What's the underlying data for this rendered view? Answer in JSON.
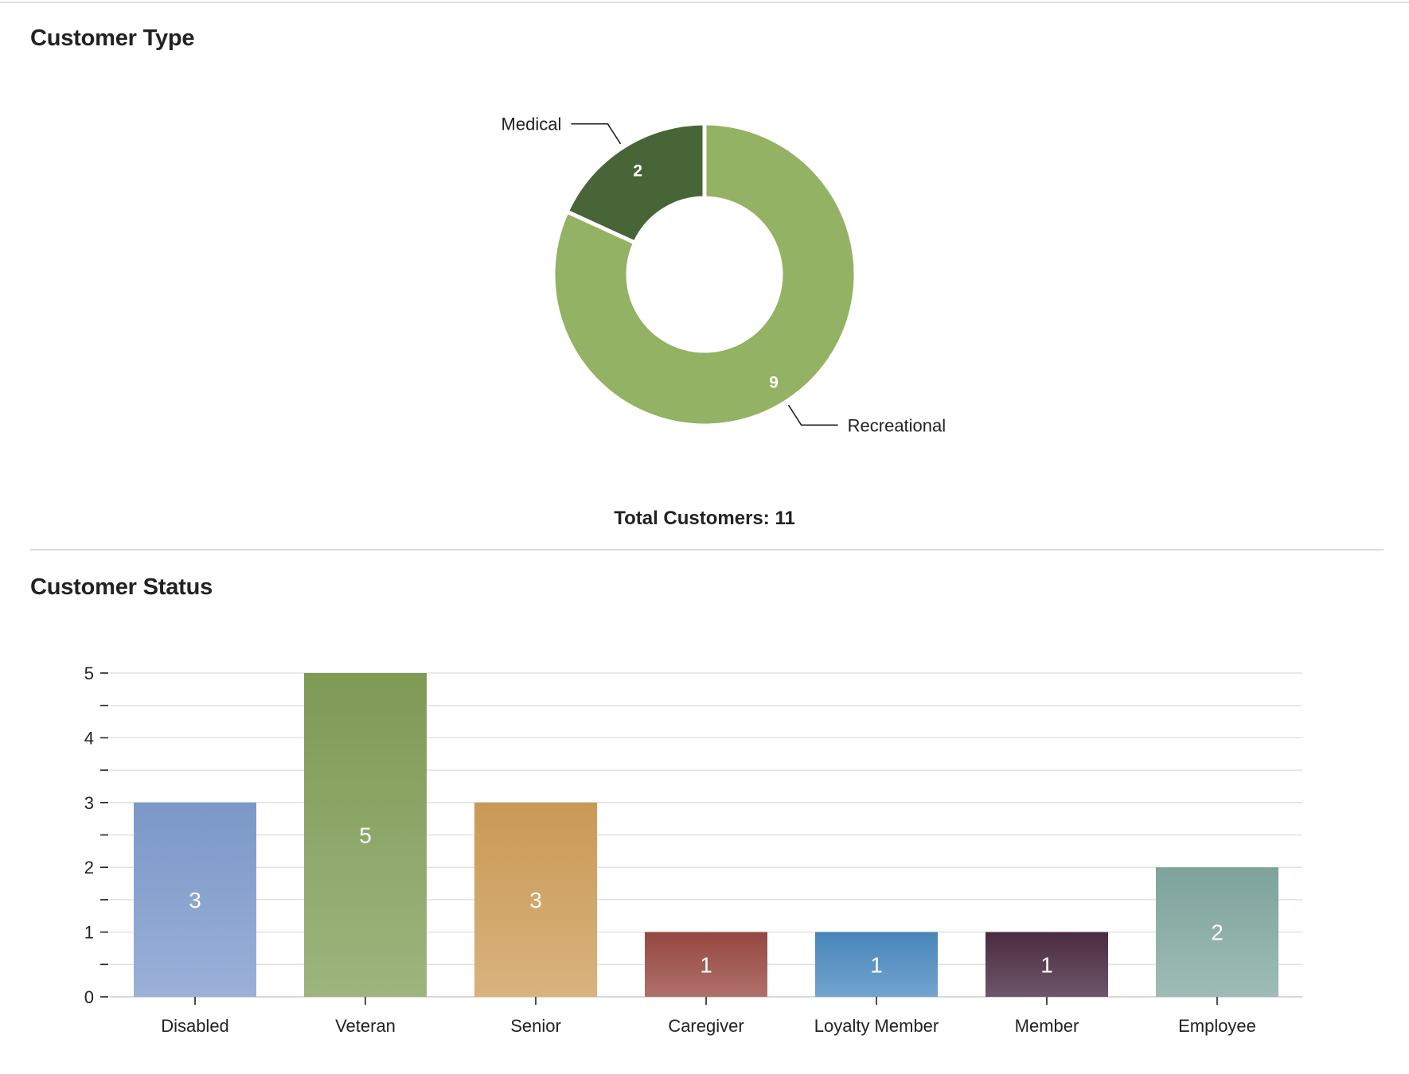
{
  "sections": {
    "customer_type_title": "Customer Type",
    "customer_status_title": "Customer Status"
  },
  "summary": {
    "total_label": "Total Customers:",
    "total_value": "11"
  },
  "chart_data": [
    {
      "type": "pie",
      "title": "Customer Type",
      "donut": true,
      "categories": [
        "Medical",
        "Recreational"
      ],
      "values": [
        2,
        9
      ],
      "colors": [
        "#486538",
        "#93b263"
      ],
      "data_labels": [
        "2",
        "9"
      ],
      "legend": "none"
    },
    {
      "type": "bar",
      "title": "Customer Status",
      "categories": [
        "Disabled",
        "Veteran",
        "Senior",
        "Caregiver",
        "Loyalty Member",
        "Member",
        "Employee"
      ],
      "values": [
        3,
        5,
        3,
        1,
        1,
        1,
        2
      ],
      "data_labels": [
        "3",
        "5",
        "3",
        "1",
        "1",
        "1",
        "2"
      ],
      "ylim": [
        0,
        5
      ],
      "yticks": [
        "0",
        "1",
        "2",
        "3",
        "4",
        "5"
      ],
      "grid": true,
      "xlabel": "",
      "ylabel": "",
      "legend": "none",
      "colors": [
        [
          "#7b98c8",
          "#9ab0d8"
        ],
        [
          "#7e9a55",
          "#9eb47e"
        ],
        [
          "#c99a55",
          "#d9b27e"
        ],
        [
          "#954741",
          "#b0706a"
        ],
        [
          "#4785b9",
          "#72a4cf"
        ],
        [
          "#4a2b40",
          "#6f566a"
        ],
        [
          "#7da39c",
          "#9ebcb5"
        ]
      ]
    }
  ]
}
